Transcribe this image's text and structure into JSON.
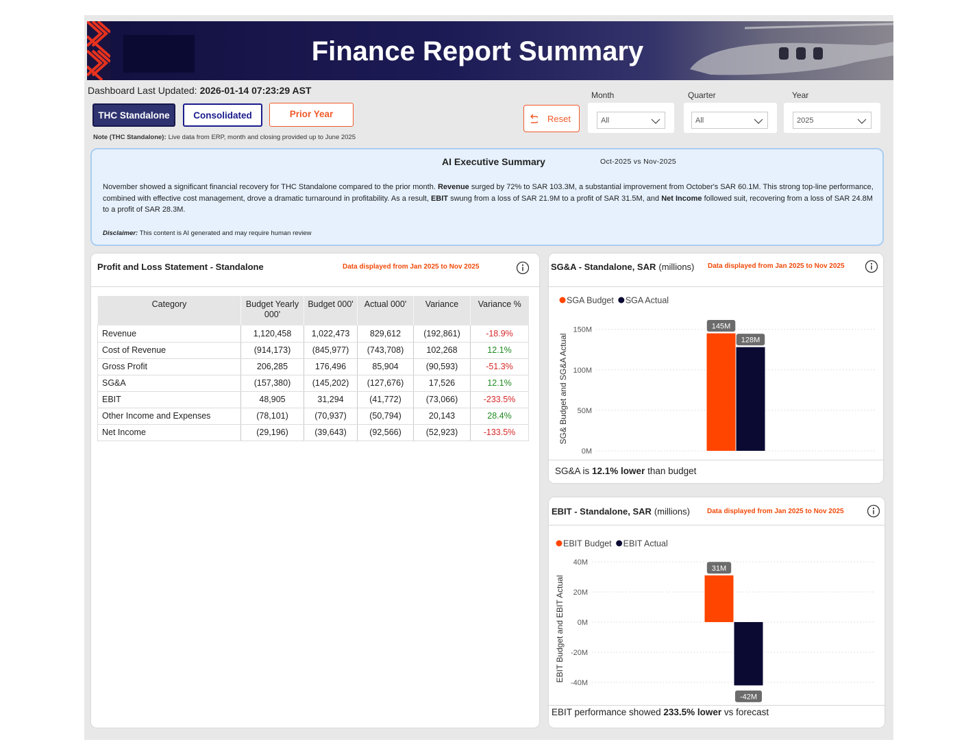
{
  "header": {
    "title": "Finance Report Summary"
  },
  "updated": {
    "label": "Dashboard Last Updated:",
    "value": "2026-01-14 07:23:29 AST"
  },
  "buttons": [
    "THC Standalone",
    "Consolidated",
    "Prior Year"
  ],
  "note": {
    "label": "Note (THC Standalone):",
    "text": "Live data from ERP, month and closing provided up to June 2025"
  },
  "reset": "Reset",
  "filters": [
    {
      "label": "Month",
      "value": "All"
    },
    {
      "label": "Quarter",
      "value": "All"
    },
    {
      "label": "Year",
      "value": "2025"
    }
  ],
  "summary": {
    "title": "AI Executive Summary",
    "period": "Oct-2025 vs Nov-2025",
    "paragraph": [
      {
        "text": "November showed a significant financial recovery for THC Standalone compared to the prior month. ",
        "bold": false
      },
      {
        "text": "Revenue",
        "bold": true
      },
      {
        "text": " surged by 72% to SAR 103.3M, a substantial improvement from October's SAR 60.1M. This strong top-line performance, combined with effective cost management, drove a dramatic turnaround in profitability. As a result, ",
        "bold": false
      },
      {
        "text": "EBIT",
        "bold": true
      },
      {
        "text": " swung from a loss of SAR 21.9M to a profit of SAR 31.5M, and ",
        "bold": false
      },
      {
        "text": "Net Income",
        "bold": true
      },
      {
        "text": " followed suit, recovering from a loss of SAR 24.8M to a profit of SAR 28.3M.",
        "bold": false
      }
    ],
    "disclaimer": {
      "label": "Disclaimer:",
      "text": "This content is AI generated and may require human review"
    }
  },
  "pnl": {
    "title": "Profit and Loss Statement - Standalone",
    "note": "Data displayed from Jan 2025 to Nov 2025",
    "columns": [
      "Category",
      "Budget Yearly 000'",
      "Budget 000'",
      "Actual 000'",
      "Variance",
      "Variance %"
    ],
    "rows": [
      [
        "Revenue",
        "1,120,458",
        "1,022,473",
        "829,612",
        "(192,861)",
        "-18.9%"
      ],
      [
        "Cost of Revenue",
        "(914,173)",
        "(845,977)",
        "(743,708)",
        "102,268",
        "12.1%"
      ],
      [
        "Gross Profit",
        "206,285",
        "176,496",
        "85,904",
        "(90,593)",
        "-51.3%"
      ],
      [
        "SG&A",
        "(157,380)",
        "(145,202)",
        "(127,676)",
        "17,526",
        "12.1%"
      ],
      [
        "EBIT",
        "48,905",
        "31,294",
        "(41,772)",
        "(73,066)",
        "-233.5%"
      ],
      [
        "Other Income and Expenses",
        "(78,101)",
        "(70,937)",
        "(50,794)",
        "20,143",
        "28.4%"
      ],
      [
        "Net Income",
        "(29,196)",
        "(39,643)",
        "(92,566)",
        "(52,923)",
        "-133.5%"
      ]
    ]
  },
  "chart_data": [
    {
      "type": "bar",
      "title": "SG&A - Standalone, SAR",
      "title_unit": "(millions)",
      "note": "Data displayed from Jan 2025 to Nov 2025",
      "y_label": "SG& Budget and SG&A Actual",
      "categories": [
        null
      ],
      "series": [
        {
          "name": "SGA Budget",
          "color": "#ff4500",
          "values": [
            145
          ],
          "value_labels": [
            "145M"
          ]
        },
        {
          "name": "SGA Actual",
          "color": "#0a0a33",
          "values": [
            128
          ],
          "value_labels": [
            "128M"
          ]
        }
      ],
      "ylim": [
        0,
        170
      ],
      "yticks": [
        {
          "value": 0,
          "label": "0M"
        },
        {
          "value": 50,
          "label": "50M"
        },
        {
          "value": 100,
          "label": "100M"
        },
        {
          "value": 150,
          "label": "150M"
        }
      ],
      "grid": true,
      "legend": "top-left",
      "footer": [
        {
          "text": "SG&A is ",
          "bold": false
        },
        {
          "text": "12.1% lower",
          "bold": true
        },
        {
          "text": " than budget",
          "bold": false
        }
      ]
    },
    {
      "type": "bar",
      "title": "EBIT - Standalone, SAR",
      "title_unit": "(millions)",
      "note": "Data displayed from Jan 2025 to Nov 2025",
      "y_label": "EBIT Budget and EBIT Actual",
      "categories": [
        null
      ],
      "series": [
        {
          "name": "EBIT Budget",
          "color": "#ff4500",
          "values": [
            31
          ],
          "value_labels": [
            "31M"
          ]
        },
        {
          "name": "EBIT Actual",
          "color": "#0a0a33",
          "values": [
            -42
          ],
          "value_labels": [
            "-42M"
          ]
        }
      ],
      "ylim": [
        -45,
        45
      ],
      "yticks": [
        {
          "value": -40,
          "label": "-40M"
        },
        {
          "value": -20,
          "label": "-20M"
        },
        {
          "value": 0,
          "label": "0M"
        },
        {
          "value": 20,
          "label": "20M"
        },
        {
          "value": 40,
          "label": "40M"
        }
      ],
      "grid": true,
      "legend": "top-left",
      "footer": [
        {
          "text": "EBIT performance showed ",
          "bold": false
        },
        {
          "text": "233.5% lower",
          "bold": true
        },
        {
          "text": " vs forecast",
          "bold": false
        }
      ]
    }
  ]
}
